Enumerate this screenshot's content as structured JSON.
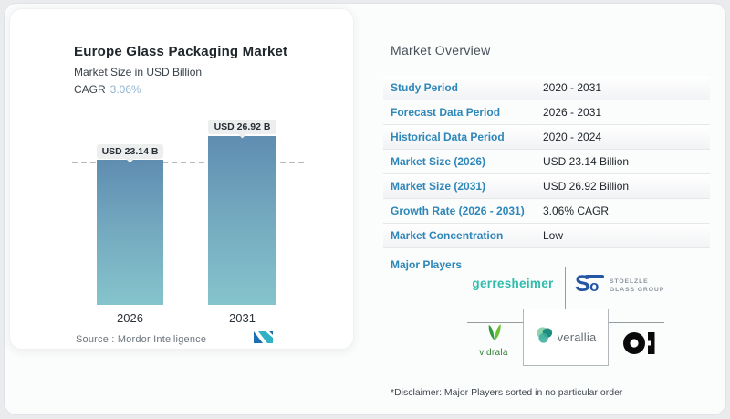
{
  "left_card": {
    "title": "Europe Glass Packaging Market",
    "subtitle": "Market Size in USD Billion",
    "cagr_label": "CAGR",
    "cagr_value": "3.06%",
    "source_label": "Source :  Mordor Intelligence"
  },
  "chart_data": {
    "type": "bar",
    "title": "Europe Glass Packaging Market",
    "subtitle": "Market Size in USD Billion",
    "unit": "USD Billion",
    "categories": [
      "2026",
      "2031"
    ],
    "values": [
      23.14,
      26.92
    ],
    "bar_labels": [
      "USD 23.14 B",
      "USD 26.92 B"
    ],
    "reference_line": 23.14,
    "ylim": [
      0,
      27
    ],
    "bar_gradient_top": "#5f8db1",
    "bar_gradient_bottom": "#85c4cc"
  },
  "overview": {
    "heading": "Market Overview",
    "rows": [
      {
        "label": "Study Period",
        "value": "2020 - 2031"
      },
      {
        "label": "Forecast Data Period",
        "value": "2026 - 2031"
      },
      {
        "label": "Historical Data Period",
        "value": "2020 - 2024"
      },
      {
        "label": "Market Size (2026)",
        "value": "USD 23.14 Billion"
      },
      {
        "label": "Market Size (2031)",
        "value": "USD 26.92 Billion"
      },
      {
        "label": "Growth Rate (2026 - 2031)",
        "value": "3.06% CAGR"
      },
      {
        "label": "Market Concentration",
        "value": "Low"
      }
    ],
    "major_players_label": "Major Players",
    "disclaimer": "*Disclaimer: Major Players sorted in no particular order"
  },
  "players": {
    "gerresheimer": "gerresheimer",
    "stoelzle_line1": "STOELZLE",
    "stoelzle_line2": "GLASS GROUP",
    "vidrala": "vidrala",
    "verallia": "verallia",
    "oi": "O-I"
  },
  "colors": {
    "label_blue": "#2e87b9",
    "cagr_light_blue": "#8fb3d1",
    "gerresheimer_teal": "#2fbcab",
    "stoelzle_blue": "#2456a4",
    "vidrala_green": "#2f9c3b",
    "verallia_teal": "#1e8d80",
    "oi_black": "#0a0a0a"
  }
}
